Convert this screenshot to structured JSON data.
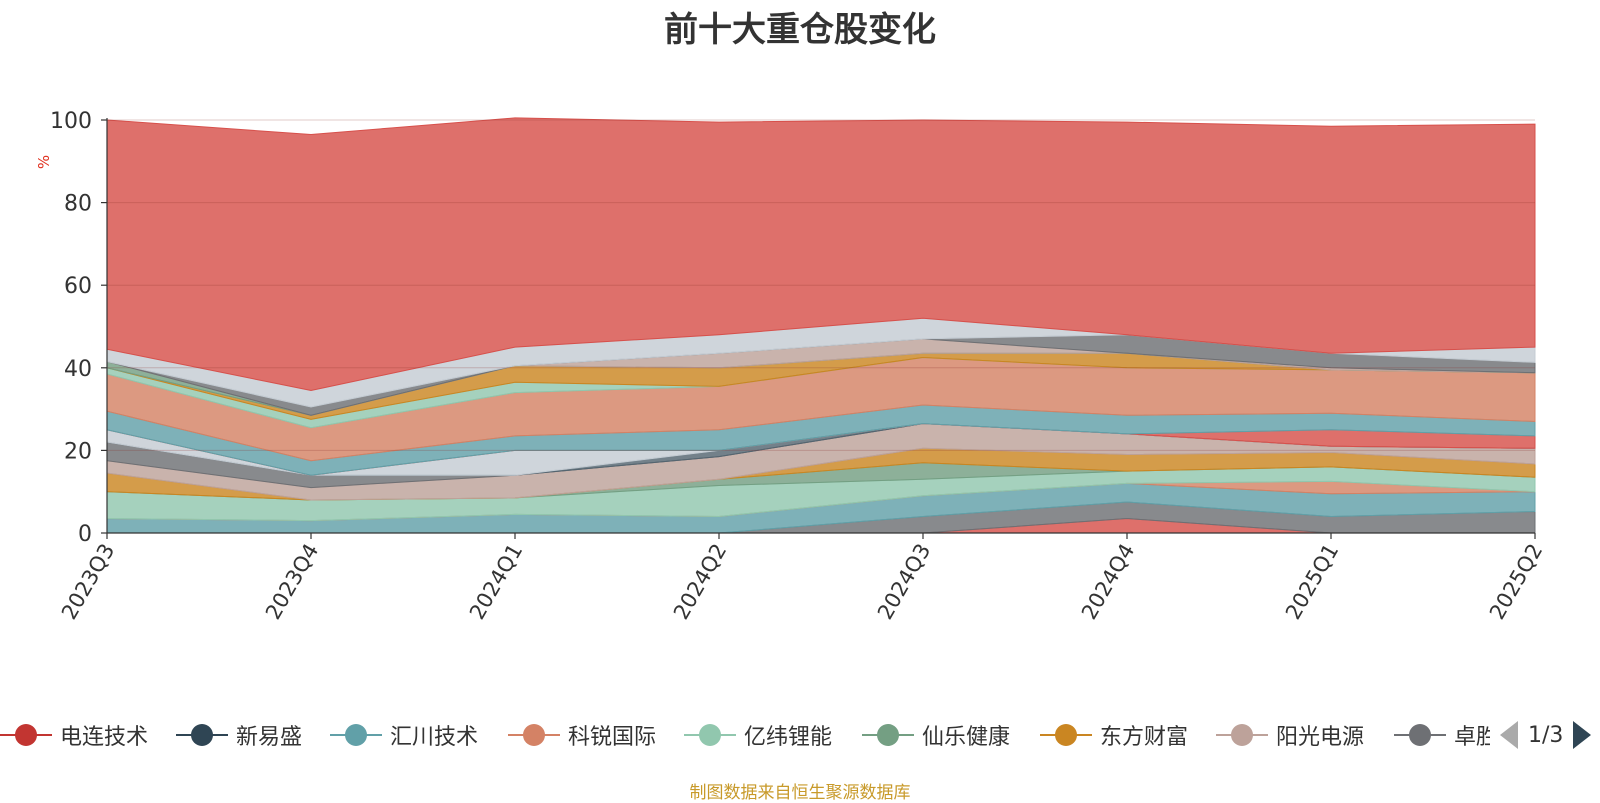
{
  "chart_data": {
    "type": "area",
    "stacked": true,
    "title": "前十大重仓股变化",
    "ylabel": "%",
    "ylim": [
      0,
      100
    ],
    "yticks": [
      0,
      20,
      40,
      60,
      80,
      100
    ],
    "grid": true,
    "legend_position": "bottom",
    "categories": [
      "2023Q3",
      "2023Q4",
      "2024Q1",
      "2024Q2",
      "2024Q3",
      "2024Q4",
      "2025Q1",
      "2025Q2"
    ],
    "series": [
      {
        "color": "#d7504b",
        "values": [
          0.0,
          0.0,
          0.0,
          0.0,
          0.0,
          3.5,
          0.0,
          0.0
        ]
      },
      {
        "color": "#6e7074",
        "values": [
          0.0,
          0.0,
          0.0,
          0.0,
          4.0,
          4.0,
          4.0,
          5.2
        ]
      },
      {
        "color": "#61a0a8",
        "values": [
          3.5,
          3.0,
          4.5,
          4.0,
          5.0,
          4.5,
          5.5,
          4.8
        ]
      },
      {
        "color": "#d48265",
        "values": [
          0.0,
          0.0,
          0.0,
          0.0,
          0.0,
          0.0,
          3.0,
          0.0
        ]
      },
      {
        "color": "#91c7ae",
        "values": [
          6.5,
          5.0,
          4.0,
          7.5,
          4.0,
          3.0,
          3.5,
          3.5
        ]
      },
      {
        "color": "#749f83",
        "values": [
          0.0,
          0.0,
          0.0,
          1.5,
          4.0,
          0.0,
          0.0,
          0.0
        ]
      },
      {
        "color": "#ca8622",
        "values": [
          4.5,
          0.0,
          0.0,
          0.0,
          3.5,
          4.0,
          3.5,
          3.2
        ]
      },
      {
        "color": "#bda29a",
        "values": [
          3.0,
          3.0,
          5.5,
          5.5,
          6.0,
          5.0,
          1.5,
          3.8
        ]
      },
      {
        "color": "#6e7074",
        "values": [
          4.5,
          3.0,
          0.0,
          0.0,
          0.0,
          0.0,
          0.0,
          0.0
        ]
      },
      {
        "color": "#546570",
        "values": [
          0.0,
          0.0,
          0.0,
          1.5,
          0.0,
          0.0,
          0.0,
          0.0
        ]
      },
      {
        "color": "#c4ccd3",
        "values": [
          3.0,
          0.0,
          6.0,
          0.0,
          0.0,
          0.0,
          0.0,
          0.0
        ]
      },
      {
        "color": "#d7504b",
        "values": [
          0.0,
          0.0,
          0.0,
          0.0,
          0.0,
          0.0,
          4.0,
          3.0
        ]
      },
      {
        "color": "#61a0a8",
        "values": [
          4.5,
          3.5,
          3.5,
          5.0,
          4.5,
          4.5,
          4.0,
          3.5
        ]
      },
      {
        "color": "#d48265",
        "values": [
          9.0,
          8.0,
          10.5,
          10.5,
          11.5,
          11.5,
          10.5,
          11.8
        ]
      },
      {
        "color": "#91c7ae",
        "values": [
          1.5,
          2.0,
          2.5,
          0.0,
          0.0,
          0.0,
          0.0,
          0.0
        ]
      },
      {
        "color": "#ca8622",
        "values": [
          0.0,
          1.0,
          4.0,
          4.5,
          1.0,
          3.5,
          0.0,
          0.0
        ]
      },
      {
        "color": "#749f83",
        "values": [
          1.5,
          0.0,
          0.0,
          0.0,
          0.0,
          0.0,
          0.0,
          0.0
        ]
      },
      {
        "color": "#bda29a",
        "values": [
          0.0,
          0.0,
          0.0,
          3.5,
          3.5,
          0.0,
          0.5,
          0.0
        ]
      },
      {
        "color": "#6e7074",
        "values": [
          0.0,
          2.0,
          0.0,
          0.0,
          0.0,
          4.5,
          3.5,
          2.5
        ]
      },
      {
        "color": "#c4ccd3",
        "values": [
          3.0,
          4.0,
          4.5,
          4.5,
          5.0,
          0.0,
          0.0,
          3.7
        ]
      },
      {
        "color": "#d7504b",
        "values": [
          55.5,
          62.0,
          55.5,
          51.5,
          48.0,
          51.5,
          55.0,
          54.0
        ]
      }
    ]
  },
  "legend": {
    "items": [
      {
        "label": "电连技术",
        "color": "#c23531"
      },
      {
        "label": "新易盛",
        "color": "#2f4554"
      },
      {
        "label": "汇川技术",
        "color": "#61a0a8"
      },
      {
        "label": "科锐国际",
        "color": "#d48265"
      },
      {
        "label": "亿纬锂能",
        "color": "#91c7ae"
      },
      {
        "label": "仙乐健康",
        "color": "#749f83"
      },
      {
        "label": "东方财富",
        "color": "#ca8622"
      },
      {
        "label": "阳光电源",
        "color": "#bda29a"
      },
      {
        "label": "卓胜微",
        "color": "#6e7074"
      }
    ],
    "page_indicator": "1/3"
  },
  "source_note": "制图数据来自恒生聚源数据库"
}
